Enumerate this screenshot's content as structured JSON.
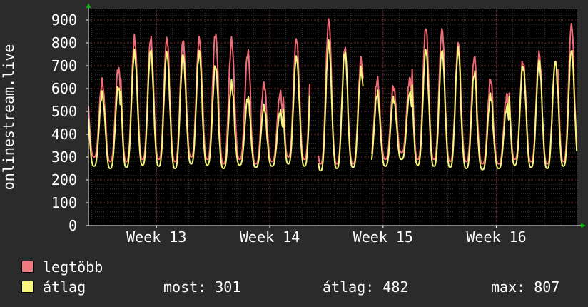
{
  "chart_data": {
    "type": "line",
    "ylabel": "onlinestream.live",
    "ylim": [
      0,
      950
    ],
    "yticks": [
      0,
      100,
      200,
      300,
      400,
      500,
      600,
      700,
      800,
      900
    ],
    "x_tick_labels": [
      "Week 13",
      "Week 14",
      "Week 15",
      "Week 16"
    ],
    "x_tick_positions_days": [
      7,
      14,
      21,
      28
    ],
    "x_range_days": [
      2.8,
      33
    ],
    "grid": true,
    "series": [
      {
        "name": "legtöbb",
        "color": "#f06b75",
        "peaks": [
          630,
          690,
          820,
          820,
          820,
          810,
          820,
          840,
          810,
          760,
          620,
          580,
          820,
          840,
          900,
          780,
          730,
          640,
          610,
          640,
          870,
          860,
          800,
          740,
          640,
          570,
          720,
          750,
          720,
          880,
          800,
          780,
          740,
          660,
          580,
          750
        ],
        "troughs": [
          300,
          280,
          280,
          290,
          290,
          280,
          300,
          290,
          270,
          290,
          270,
          280,
          300,
          290,
          270,
          270,
          270,
          280,
          290,
          320,
          290,
          290,
          280,
          280,
          270,
          270,
          290,
          280,
          270,
          280,
          290,
          300,
          290,
          310,
          320,
          310
        ],
        "gaps": [
          [
            16.5,
            17.0
          ],
          [
            19.8,
            20.3
          ]
        ]
      },
      {
        "name": "átlag",
        "color": "#f7f77f",
        "peaks": [
          580,
          610,
          760,
          770,
          760,
          750,
          760,
          700,
          620,
          560,
          520,
          500,
          740,
          760,
          800,
          760,
          680,
          580,
          560,
          580,
          770,
          770,
          770,
          670,
          570,
          520,
          700,
          720,
          720,
          770,
          760,
          740,
          680,
          600,
          550,
          700
        ],
        "troughs": [
          260,
          250,
          255,
          265,
          260,
          250,
          270,
          265,
          250,
          265,
          255,
          260,
          270,
          260,
          240,
          250,
          255,
          260,
          260,
          290,
          265,
          260,
          255,
          250,
          245,
          250,
          265,
          255,
          250,
          260,
          265,
          270,
          260,
          280,
          290,
          290
        ],
        "gaps": [
          [
            16.5,
            17.0
          ],
          [
            19.8,
            20.3
          ]
        ]
      }
    ]
  },
  "legend": {
    "items": [
      {
        "label": "legtöbb",
        "color": "#f07a80"
      },
      {
        "label": "átlag",
        "color": "#f7f77f"
      }
    ],
    "stats": {
      "current": "most: 301",
      "average": "átlag: 482",
      "max": "max: 807"
    }
  },
  "colors": {
    "background": "#2b2b2b",
    "plot_background": "#000000",
    "grid_major": "#7a2a2a",
    "grid_minor": "#3a3a3a",
    "axis": "#ffffff",
    "arrow": "#00c000"
  }
}
